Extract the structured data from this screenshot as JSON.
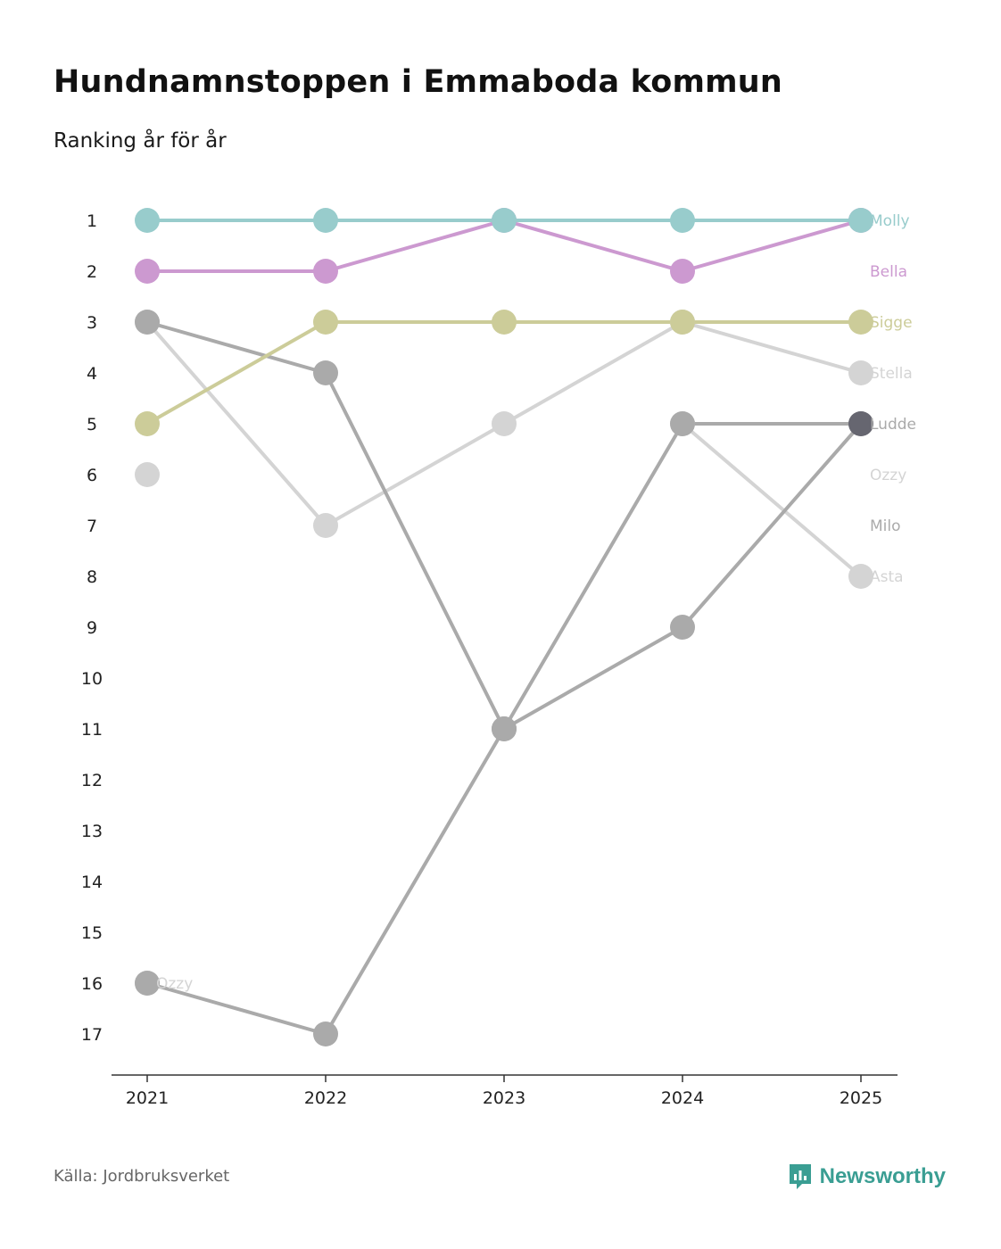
{
  "header": {
    "title": "Hundnamnstoppen i Emmaboda kommun",
    "subtitle": "Ranking år för år"
  },
  "footer": {
    "source": "Källa: Jordbruksverket",
    "brand": "Newsworthy"
  },
  "colors": {
    "Molly": "#98cccc",
    "Bella": "#cc99d0",
    "Sigge": "#cccc99",
    "Stella": "#d4d4d4",
    "Ludde": "#aaaaaa",
    "Ozzy": "#d4d4d4",
    "Milo": "#aaaaaa",
    "Asta": "#d4d4d4",
    "highlight_dot": "#666670",
    "axis": "#333333",
    "brand": "#3a9e93"
  },
  "chart_data": {
    "type": "line",
    "title": "Hundnamnstoppen i Emmaboda kommun",
    "subtitle": "Ranking år för år",
    "x": [
      "2021",
      "2022",
      "2023",
      "2024",
      "2025"
    ],
    "y_ticks": [
      "1",
      "2",
      "3",
      "4",
      "5",
      "6",
      "7",
      "8",
      "9",
      "10",
      "11",
      "12",
      "13",
      "14",
      "15",
      "16",
      "17"
    ],
    "ylim": [
      1,
      17
    ],
    "y_inverted": true,
    "series": [
      {
        "name": "Stella",
        "values": [
          3,
          7,
          5,
          3,
          4
        ]
      },
      {
        "name": "Asta",
        "values": [
          6,
          null,
          null,
          5,
          8
        ]
      },
      {
        "name": "Ozzy",
        "values": [
          16,
          null,
          null,
          null,
          null
        ]
      },
      {
        "name": "Milo",
        "values": [
          3,
          4,
          11,
          5,
          5
        ]
      },
      {
        "name": "Ludde",
        "values": [
          16,
          17,
          11,
          9,
          5
        ]
      },
      {
        "name": "Sigge",
        "values": [
          5,
          3,
          3,
          3,
          3
        ]
      },
      {
        "name": "Bella",
        "values": [
          2,
          2,
          1,
          2,
          1
        ]
      },
      {
        "name": "Molly",
        "values": [
          1,
          1,
          1,
          1,
          1
        ]
      }
    ],
    "end_labels": [
      {
        "name": "Molly",
        "rank": 1
      },
      {
        "name": "Bella",
        "rank": 2
      },
      {
        "name": "Sigge",
        "rank": 3
      },
      {
        "name": "Stella",
        "rank": 4
      },
      {
        "name": "Ludde",
        "rank": 5
      },
      {
        "name": "Ozzy",
        "rank": 6
      },
      {
        "name": "Milo",
        "rank": 7
      },
      {
        "name": "Asta",
        "rank": 8
      }
    ],
    "start_labels": [
      {
        "name": "Ozzy",
        "rank": 16
      }
    ]
  }
}
